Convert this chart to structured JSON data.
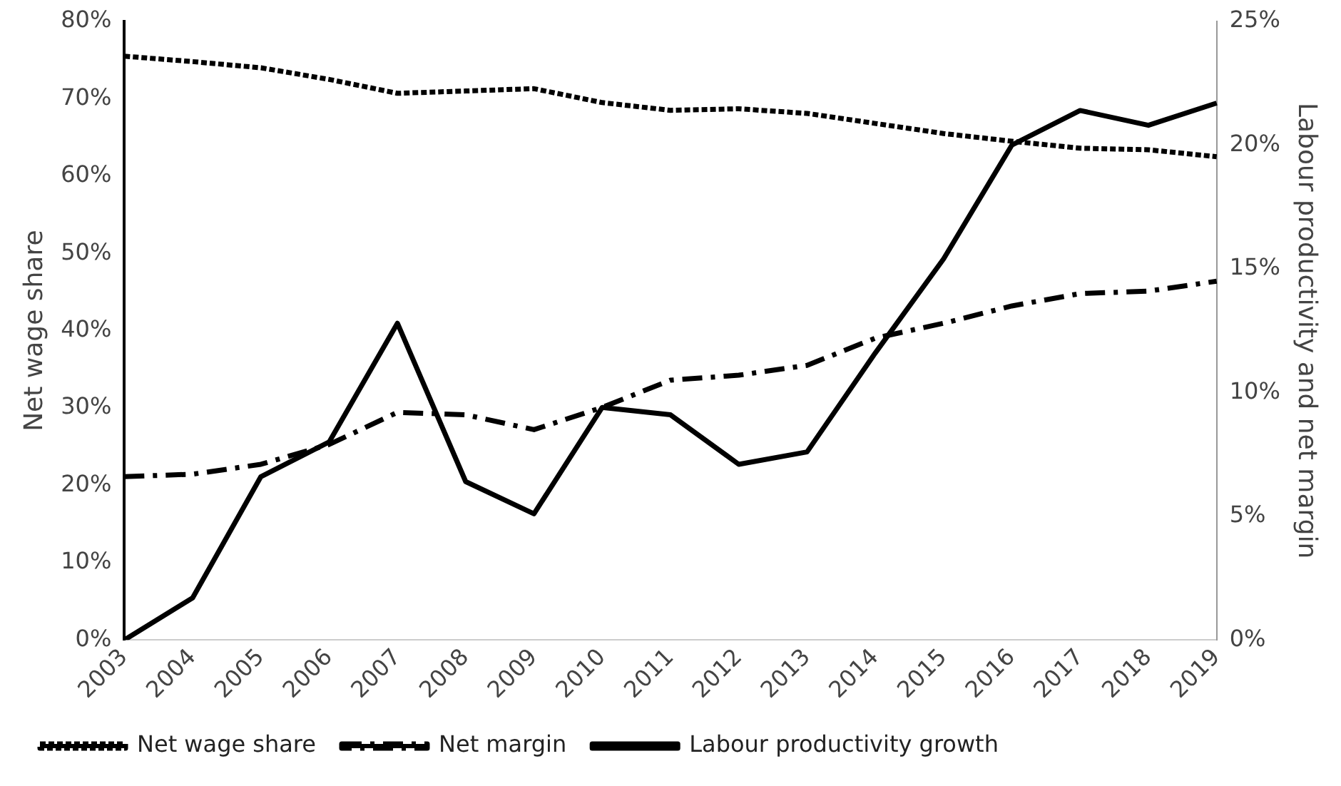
{
  "chart_data": {
    "type": "line",
    "ylabel": "Net wage share",
    "y2label": "Labour productivity and net margin",
    "categories": [
      "2003",
      "2004",
      "2005",
      "2006",
      "2007",
      "2008",
      "2009",
      "2010",
      "2011",
      "2012",
      "2013",
      "2014",
      "2015",
      "2016",
      "2017",
      "2018",
      "2019"
    ],
    "ylim": [
      0,
      80
    ],
    "yticks": [
      {
        "value": 0,
        "label": "0%"
      },
      {
        "value": 10,
        "label": "10%"
      },
      {
        "value": 20,
        "label": "20%"
      },
      {
        "value": 30,
        "label": "30%"
      },
      {
        "value": 40,
        "label": "40%"
      },
      {
        "value": 50,
        "label": "50%"
      },
      {
        "value": 60,
        "label": "60%"
      },
      {
        "value": 70,
        "label": "70%"
      },
      {
        "value": 80,
        "label": "80%"
      }
    ],
    "y2lim": [
      0,
      25
    ],
    "y2ticks": [
      {
        "value": 0,
        "label": "0%"
      },
      {
        "value": 5,
        "label": "5%"
      },
      {
        "value": 10,
        "label": "10%"
      },
      {
        "value": 15,
        "label": "15%"
      },
      {
        "value": 20,
        "label": "20%"
      },
      {
        "value": 25,
        "label": "25%"
      }
    ],
    "series": [
      {
        "name": "Net wage share",
        "color": "#000000",
        "line_style": "dotted",
        "values": [
          75.5,
          74.8,
          74.0,
          72.5,
          70.7,
          71.0,
          71.3,
          69.5,
          68.5,
          68.7,
          68.1,
          66.8,
          65.5,
          64.5,
          63.6,
          63.4,
          62.5
        ]
      },
      {
        "name": "Net margin",
        "color": "#000000",
        "line_style": "dashed",
        "axis": "y2",
        "values": [
          6.6,
          6.7,
          7.1,
          7.9,
          9.2,
          9.1,
          8.5,
          9.4,
          10.5,
          10.7,
          11.1,
          12.2,
          12.8,
          13.5,
          14.0,
          14.1,
          14.5
        ]
      },
      {
        "name": "Labour productivity growth",
        "color": "#000000",
        "line_style": "solid",
        "axis": "y2",
        "values": [
          0,
          1.7,
          6.6,
          8.0,
          12.8,
          6.4,
          5.1,
          9.4,
          9.1,
          7.1,
          7.6,
          11.6,
          15.4,
          20.0,
          21.4,
          20.8,
          21.7
        ]
      }
    ],
    "grid": false,
    "legend": "bottom",
    "marker": "none"
  }
}
